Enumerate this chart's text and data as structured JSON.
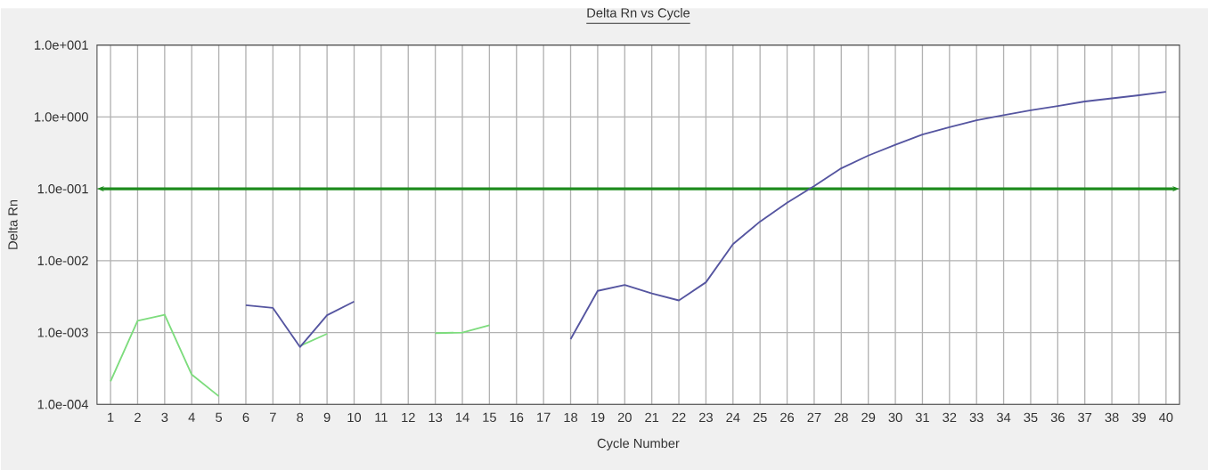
{
  "chart_data": {
    "type": "line",
    "title": "Delta Rn vs Cycle",
    "xlabel": "Cycle Number",
    "ylabel": "Delta Rn",
    "x": [
      1,
      2,
      3,
      4,
      5,
      6,
      7,
      8,
      9,
      10,
      11,
      12,
      13,
      14,
      15,
      16,
      17,
      18,
      19,
      20,
      21,
      22,
      23,
      24,
      25,
      26,
      27,
      28,
      29,
      30,
      31,
      32,
      33,
      34,
      35,
      36,
      37,
      38,
      39,
      40
    ],
    "series": [
      {
        "color": "#7ddc7d",
        "values": [
          0.00021,
          0.00146,
          0.00177,
          0.00026,
          0.00013,
          null,
          null,
          0.00065,
          0.00096,
          null,
          null,
          null,
          0.00098,
          0.001,
          0.00126,
          null,
          null,
          null,
          null,
          null,
          null,
          null,
          null,
          null,
          null,
          null,
          null,
          null,
          null,
          null,
          null,
          null,
          null,
          null,
          null,
          null,
          null,
          null,
          null,
          null
        ]
      },
      {
        "color": "#5555a0",
        "values": [
          null,
          null,
          null,
          null,
          null,
          0.0024,
          0.0022,
          0.00063,
          0.00174,
          0.0027,
          null,
          null,
          null,
          null,
          null,
          null,
          null,
          0.00081,
          0.0038,
          0.0046,
          0.0035,
          0.0028,
          0.005,
          0.017,
          0.035,
          0.064,
          0.109,
          0.193,
          0.29,
          0.41,
          0.57,
          0.72,
          0.9,
          1.06,
          1.24,
          1.42,
          1.64,
          1.81,
          2.0,
          2.24
        ]
      }
    ],
    "log": "y",
    "grid": true,
    "xlim": [
      0.5,
      40.5
    ],
    "xticks": [
      1,
      2,
      3,
      4,
      5,
      6,
      7,
      8,
      9,
      10,
      11,
      12,
      13,
      14,
      15,
      16,
      17,
      18,
      19,
      20,
      21,
      22,
      23,
      24,
      25,
      26,
      27,
      28,
      29,
      30,
      31,
      32,
      33,
      34,
      35,
      36,
      37,
      38,
      39,
      40
    ],
    "ylim": [
      0.0001,
      10
    ],
    "yticks": [
      {
        "value": 0.0001,
        "label": "1.0e-004"
      },
      {
        "value": 0.001,
        "label": "1.0e-003"
      },
      {
        "value": 0.01,
        "label": "1.0e-002"
      },
      {
        "value": 0.1,
        "label": "1.0e-001"
      },
      {
        "value": 1,
        "label": "1.0e+000"
      },
      {
        "value": 10,
        "label": "1.0e+001"
      }
    ],
    "ref_lines": [
      {
        "axis": "y",
        "value": 0.1,
        "color": "#1e8c1e"
      }
    ]
  }
}
